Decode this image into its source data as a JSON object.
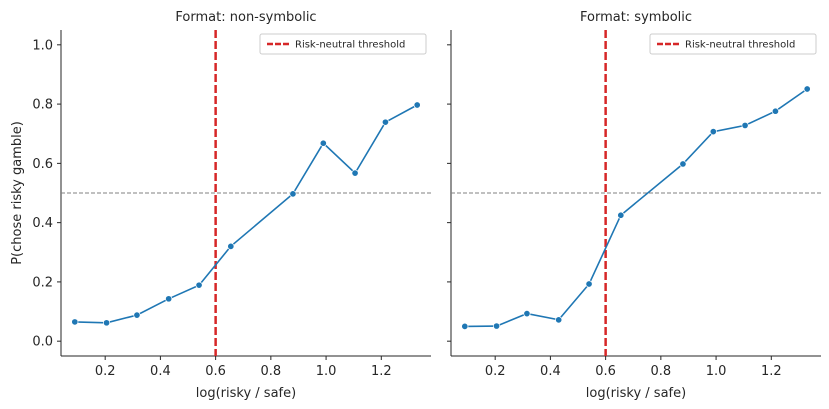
{
  "chart_data": {
    "type": "line",
    "ylabel": "P(chose risky gamble)",
    "xlim": [
      0.04,
      1.38
    ],
    "ylim": [
      -0.05,
      1.05
    ],
    "xticks": [
      "0.2",
      "0.4",
      "0.6",
      "0.8",
      "1.0",
      "1.2"
    ],
    "yticks": [
      "0.0",
      "0.2",
      "0.4",
      "0.6",
      "0.8",
      "1.0"
    ],
    "x": [
      0.09,
      0.205,
      0.315,
      0.43,
      0.54,
      0.655,
      0.88,
      0.99,
      1.105,
      1.215,
      1.33
    ],
    "reference_lines": {
      "risk_neutral_threshold_x": 0.6,
      "chance_level_y": 0.5
    },
    "legend": {
      "label": "Risk-neutral threshold",
      "placement": "top-right"
    },
    "colors": {
      "series": "#1f77b4",
      "threshold": "#d62728",
      "chance": "#808080"
    },
    "panels": [
      {
        "title": "Format: non-symbolic",
        "xlabel": "log(risky / safe)",
        "values": [
          0.065,
          0.062,
          0.088,
          0.143,
          0.189,
          0.32,
          0.497,
          0.668,
          0.567,
          0.739,
          0.797
        ]
      },
      {
        "title": "Format: symbolic",
        "xlabel": "log(risky / safe)",
        "values": [
          0.05,
          0.051,
          0.093,
          0.072,
          0.193,
          0.425,
          0.598,
          0.707,
          0.728,
          0.776,
          0.851
        ]
      }
    ]
  }
}
